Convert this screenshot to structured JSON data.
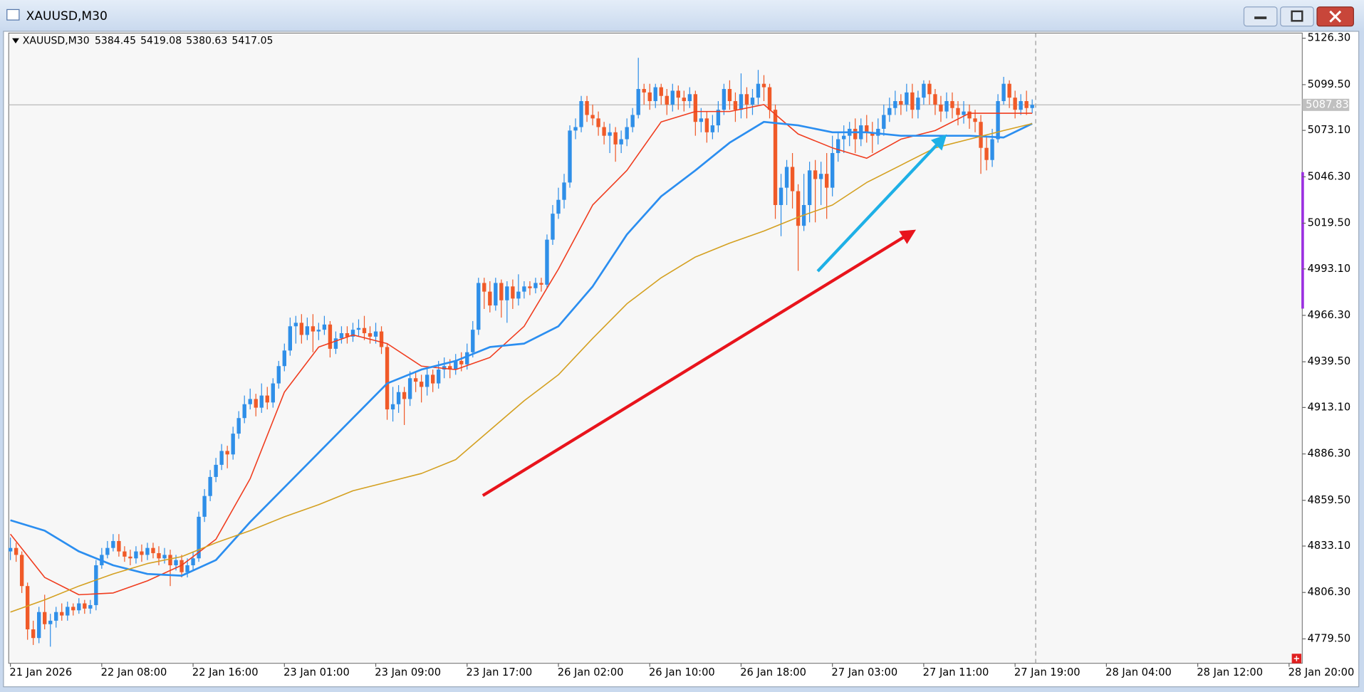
{
  "symbol": "XAUUSD,M30",
  "header_values": [
    5384.45,
    5419.08,
    5380.63,
    5417.05
  ],
  "chart_data": {
    "type": "candlestick",
    "up_color": "#2f8fe8",
    "down_color": "#f05a28",
    "xlim": [
      -0.3,
      226
    ],
    "ylim": [
      4765.4,
      5129.3
    ],
    "xticks": [
      {
        "value": 0,
        "label": "21 Jan 2026"
      },
      {
        "value": 16,
        "label": "22 Jan 08:00"
      },
      {
        "value": 32,
        "label": "22 Jan 16:00"
      },
      {
        "value": 48,
        "label": "23 Jan 01:00"
      },
      {
        "value": 64,
        "label": "23 Jan 09:00"
      },
      {
        "value": 80,
        "label": "23 Jan 17:00"
      },
      {
        "value": 96,
        "label": "26 Jan 02:00"
      },
      {
        "value": 112,
        "label": "26 Jan 10:00"
      },
      {
        "value": 128,
        "label": "26 Jan 18:00"
      },
      {
        "value": 144,
        "label": "27 Jan 03:00"
      },
      {
        "value": 160,
        "label": "27 Jan 11:00"
      },
      {
        "value": 176,
        "label": "27 Jan 19:00"
      },
      {
        "value": 192,
        "label": "28 Jan 04:00"
      },
      {
        "value": 208,
        "label": "28 Jan 12:00"
      },
      {
        "value": 224,
        "label": "28 Jan 20:00"
      }
    ],
    "yticks": [
      {
        "value": 5126.3,
        "label": "5126.30"
      },
      {
        "value": 5099.5,
        "label": "5099.50"
      },
      {
        "value": 5073.1,
        "label": "5073.10"
      },
      {
        "value": 5046.3,
        "label": "5046.30"
      },
      {
        "value": 5019.5,
        "label": "5019.50"
      },
      {
        "value": 4993.1,
        "label": "4993.10"
      },
      {
        "value": 4966.3,
        "label": "4966.30"
      },
      {
        "value": 4939.5,
        "label": "4939.50"
      },
      {
        "value": 4913.1,
        "label": "4913.10"
      },
      {
        "value": 4886.3,
        "label": "4886.30"
      },
      {
        "value": 4859.5,
        "label": "4859.50"
      },
      {
        "value": 4833.1,
        "label": "4833.10"
      },
      {
        "value": 4806.3,
        "label": "4806.30"
      },
      {
        "value": 4779.5,
        "label": "4779.50"
      }
    ],
    "open": [
      4830,
      4832,
      4828,
      4810,
      4785,
      4780,
      4795,
      4788,
      4790,
      4795,
      4793,
      4798,
      4796,
      4800,
      4797,
      4799,
      4822,
      4828,
      4832,
      4836,
      4830,
      4827,
      4826,
      4830,
      4828,
      4832,
      4829,
      4826,
      4828,
      4822,
      4825,
      4818,
      4822,
      4826,
      4850,
      4862,
      4873,
      4880,
      4888,
      4886,
      4898,
      4907,
      4915,
      4918,
      4913,
      4920,
      4916,
      4927,
      4937,
      4946,
      4960,
      4962,
      4955,
      4960,
      4957,
      4958,
      4961,
      4947,
      4953,
      4956,
      4954,
      4958,
      4959,
      4956,
      4954,
      4957,
      4948,
      4912,
      4915,
      4922,
      4918,
      4930,
      4928,
      4925,
      4932,
      4927,
      4935,
      4937,
      4935,
      4940,
      4938,
      4945,
      4958,
      4985,
      4980,
      4972,
      4985,
      4975,
      4983,
      4976,
      4980,
      4983,
      4982,
      4985,
      4984,
      5010,
      5025,
      5033,
      5043,
      5073,
      5075,
      5090,
      5082,
      5080,
      5075,
      5070,
      5072,
      5065,
      5068,
      5075,
      5082,
      5097,
      5095,
      5090,
      5098,
      5093,
      5088,
      5096,
      5092,
      5090,
      5094,
      5078,
      5080,
      5072,
      5076,
      5085,
      5097,
      5090,
      5085,
      5094,
      5088,
      5092,
      5100,
      5098,
      5085,
      5030,
      5040,
      5052,
      5038,
      5018,
      5030,
      5050,
      5045,
      5048,
      5040,
      5060,
      5068,
      5070,
      5074,
      5068,
      5076,
      5072,
      5070,
      5074,
      5082,
      5086,
      5090,
      5088,
      5095,
      5085,
      5092,
      5100,
      5094,
      5088,
      5084,
      5090,
      5086,
      5082,
      5084,
      5080,
      5078,
      5063,
      5056,
      5068,
      5090,
      5100,
      5092,
      5085,
      5090,
      5086
    ],
    "high": [
      4838,
      4835,
      4830,
      4812,
      4790,
      4798,
      4805,
      4794,
      4798,
      4800,
      4801,
      4800,
      4803,
      4802,
      4802,
      4825,
      4832,
      4836,
      4840,
      4840,
      4833,
      4831,
      4833,
      4834,
      4835,
      4835,
      4833,
      4832,
      4831,
      4828,
      4828,
      4826,
      4830,
      4853,
      4866,
      4877,
      4884,
      4892,
      4891,
      4902,
      4911,
      4920,
      4924,
      4921,
      4927,
      4925,
      4930,
      4940,
      4950,
      4965,
      4966,
      4967,
      4965,
      4967,
      4962,
      4966,
      4963,
      4957,
      4960,
      4960,
      4962,
      4964,
      4966,
      4960,
      4962,
      4960,
      4950,
      4925,
      4926,
      4925,
      4934,
      4934,
      4932,
      4936,
      4935,
      4940,
      4942,
      4941,
      4944,
      4945,
      4950,
      4963,
      4988,
      4988,
      4986,
      4988,
      4987,
      4986,
      4987,
      4990,
      4986,
      4986,
      4988,
      4988,
      5013,
      5030,
      5040,
      5048,
      5076,
      5080,
      5093,
      5093,
      5088,
      5084,
      5078,
      5077,
      5075,
      5073,
      5080,
      5086,
      5115,
      5100,
      5100,
      5100,
      5100,
      5097,
      5100,
      5099,
      5096,
      5098,
      5096,
      5086,
      5084,
      5082,
      5090,
      5100,
      5102,
      5095,
      5106,
      5098,
      5097,
      5108,
      5105,
      5100,
      5088,
      5048,
      5056,
      5060,
      5042,
      5048,
      5055,
      5056,
      5055,
      5060,
      5070,
      5072,
      5076,
      5078,
      5080,
      5080,
      5082,
      5078,
      5080,
      5088,
      5092,
      5096,
      5094,
      5100,
      5100,
      5096,
      5102,
      5102,
      5097,
      5093,
      5095,
      5095,
      5090,
      5090,
      5088,
      5085,
      5082,
      5070,
      5074,
      5094,
      5104,
      5102,
      5096,
      5094,
      5096,
      5091
    ],
    "low": [
      4825,
      4824,
      4806,
      4779,
      4776,
      4777,
      4785,
      4775,
      4786,
      4790,
      4790,
      4793,
      4794,
      4794,
      4794,
      4796,
      4820,
      4826,
      4830,
      4827,
      4824,
      4822,
      4823,
      4824,
      4825,
      4826,
      4822,
      4823,
      4810,
      4819,
      4815,
      4815,
      4819,
      4824,
      4847,
      4859,
      4870,
      4877,
      4878,
      4883,
      4895,
      4904,
      4912,
      4908,
      4910,
      4912,
      4913,
      4924,
      4934,
      4943,
      4950,
      4950,
      4952,
      4945,
      4952,
      4955,
      4942,
      4944,
      4950,
      4950,
      4951,
      4954,
      4952,
      4950,
      4950,
      4944,
      4906,
      4905,
      4910,
      4903,
      4914,
      4922,
      4916,
      4920,
      4922,
      4924,
      4930,
      4930,
      4932,
      4934,
      4935,
      4942,
      4955,
      4970,
      4968,
      4969,
      4965,
      4962,
      4970,
      4972,
      4976,
      4978,
      4979,
      4980,
      4982,
      5007,
      5022,
      5028,
      5040,
      5068,
      5072,
      5078,
      5076,
      5070,
      5065,
      5060,
      5055,
      5060,
      5064,
      5072,
      5080,
      5088,
      5085,
      5086,
      5088,
      5082,
      5084,
      5085,
      5084,
      5086,
      5070,
      5072,
      5066,
      5068,
      5072,
      5082,
      5085,
      5078,
      5080,
      5080,
      5082,
      5088,
      5090,
      5080,
      5022,
      5012,
      5030,
      5028,
      4992,
      5015,
      5020,
      5020,
      5030,
      5022,
      5035,
      5055,
      5060,
      5064,
      5060,
      5064,
      5066,
      5060,
      5065,
      5070,
      5078,
      5082,
      5082,
      5084,
      5080,
      5080,
      5088,
      5088,
      5082,
      5078,
      5080,
      5080,
      5076,
      5077,
      5074,
      5072,
      5048,
      5050,
      5052,
      5066,
      5088,
      5086,
      5080,
      5082,
      5082,
      5083
    ],
    "close": [
      4832,
      4828,
      4810,
      4785,
      4780,
      4795,
      4788,
      4790,
      4795,
      4793,
      4798,
      4796,
      4800,
      4797,
      4799,
      4822,
      4828,
      4832,
      4836,
      4830,
      4827,
      4826,
      4830,
      4828,
      4832,
      4829,
      4826,
      4828,
      4822,
      4825,
      4818,
      4822,
      4826,
      4850,
      4862,
      4873,
      4880,
      4888,
      4886,
      4898,
      4907,
      4915,
      4918,
      4913,
      4920,
      4916,
      4927,
      4937,
      4946,
      4960,
      4962,
      4955,
      4960,
      4957,
      4958,
      4961,
      4947,
      4953,
      4956,
      4954,
      4958,
      4959,
      4956,
      4954,
      4957,
      4948,
      4912,
      4915,
      4922,
      4918,
      4930,
      4928,
      4925,
      4932,
      4927,
      4935,
      4937,
      4935,
      4940,
      4938,
      4945,
      4958,
      4985,
      4980,
      4972,
      4985,
      4975,
      4983,
      4976,
      4980,
      4983,
      4982,
      4985,
      4984,
      5010,
      5025,
      5033,
      5043,
      5073,
      5075,
      5090,
      5082,
      5080,
      5075,
      5070,
      5072,
      5065,
      5068,
      5075,
      5082,
      5097,
      5095,
      5090,
      5098,
      5093,
      5088,
      5096,
      5092,
      5090,
      5094,
      5078,
      5080,
      5072,
      5076,
      5085,
      5097,
      5090,
      5085,
      5094,
      5088,
      5092,
      5100,
      5098,
      5085,
      5030,
      5040,
      5052,
      5038,
      5018,
      5030,
      5050,
      5045,
      5048,
      5040,
      5060,
      5068,
      5070,
      5074,
      5068,
      5076,
      5072,
      5070,
      5074,
      5082,
      5086,
      5090,
      5088,
      5095,
      5085,
      5092,
      5100,
      5094,
      5088,
      5084,
      5090,
      5086,
      5082,
      5084,
      5080,
      5078,
      5063,
      5056,
      5068,
      5090,
      5100,
      5092,
      5085,
      5090,
      5086,
      5087.83
    ],
    "ma_x": [
      0,
      6,
      12,
      18,
      24,
      30,
      36,
      42,
      48,
      54,
      60,
      66,
      72,
      78,
      84,
      90,
      96,
      102,
      108,
      114,
      120,
      126,
      132,
      138,
      144,
      150,
      156,
      162,
      168,
      174,
      179
    ],
    "ma": [
      {
        "color": "#f03c1e",
        "width": 1.3,
        "values": [
          4840,
          4815,
          4805,
          4806,
          4813,
          4822,
          4837,
          4872,
          4922,
          4948,
          4955,
          4950,
          4937,
          4935,
          4942,
          4960,
          4993,
          5030,
          5050,
          5078,
          5084,
          5084,
          5088,
          5071,
          5063,
          5057,
          5068,
          5073,
          5083,
          5083,
          5083
        ]
      },
      {
        "color": "#2b8ef0",
        "width": 2.2,
        "values": [
          4848,
          4842,
          4830,
          4822,
          4817,
          4816,
          4825,
          4847,
          4867,
          4887,
          4907,
          4927,
          4935,
          4940,
          4948,
          4950,
          4960,
          4983,
          5013,
          5035,
          5050,
          5066,
          5078,
          5076,
          5072,
          5072,
          5070,
          5070,
          5070,
          5069,
          5077
        ]
      },
      {
        "color": "#d4a020",
        "width": 1.3,
        "values": [
          4795,
          4802,
          4810,
          4817,
          4823,
          4827,
          4835,
          4842,
          4850,
          4857,
          4865,
          4870,
          4875,
          4883,
          4900,
          4917,
          4932,
          4953,
          4973,
          4988,
          5000,
          5008,
          5015,
          5023,
          5030,
          5043,
          5053,
          5063,
          5068,
          5073,
          5077
        ]
      }
    ]
  }
}
